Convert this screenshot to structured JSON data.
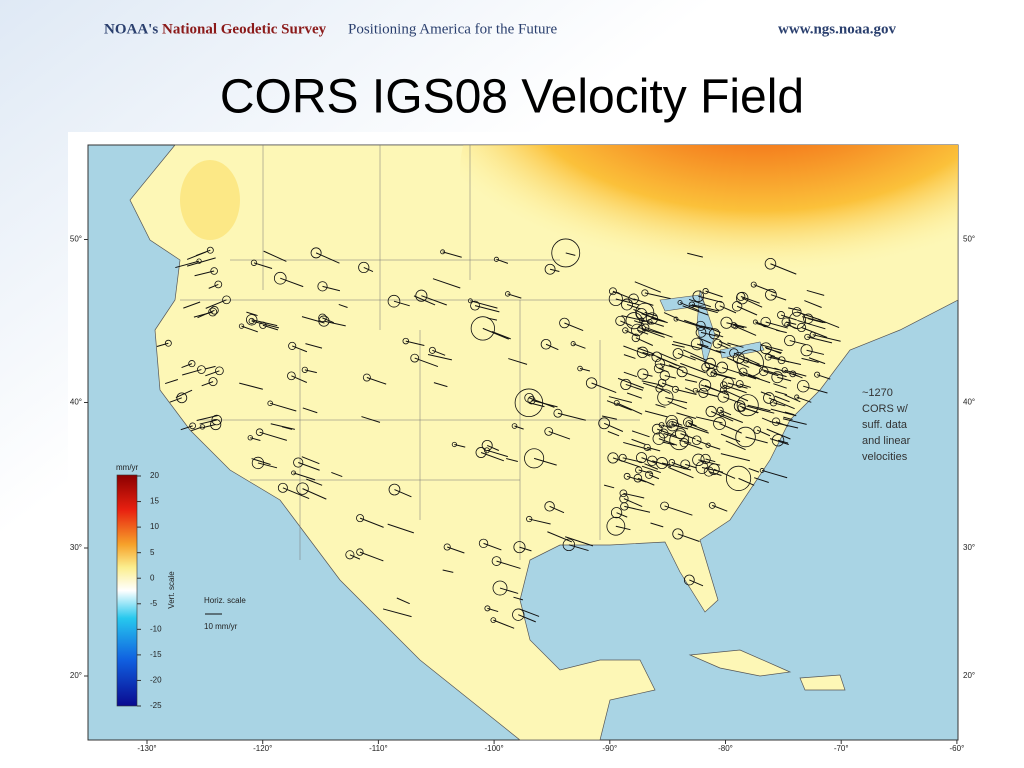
{
  "header": {
    "agency": "NOAA's",
    "survey": "National Geodetic Survey",
    "motto": "Positioning America for the Future",
    "url": "www.ngs.noaa.gov"
  },
  "title": "CORS IGS08 Velocity Field",
  "map": {
    "annotation": [
      "~1270",
      "CORS w/",
      "suff. data",
      "and linear",
      "velocities"
    ],
    "lon_ticks": [
      {
        "value": -130,
        "label": "-130°"
      },
      {
        "value": -120,
        "label": "-120°"
      },
      {
        "value": -110,
        "label": "-110°"
      },
      {
        "value": -100,
        "label": "-100°"
      },
      {
        "value": -90,
        "label": "-90°"
      },
      {
        "value": -80,
        "label": "-80°"
      },
      {
        "value": -70,
        "label": "-70°"
      },
      {
        "value": -60,
        "label": "-60°"
      }
    ],
    "lat_ticks": [
      {
        "value": 20,
        "label": "20°"
      },
      {
        "value": 30,
        "label": "30°"
      },
      {
        "value": 40,
        "label": "40°"
      },
      {
        "value": 50,
        "label": "50°"
      }
    ],
    "colorbar": {
      "unit": "mm/yr",
      "label": "Vert. scale",
      "lim": [
        -25,
        20
      ],
      "ticks": [
        20,
        15,
        10,
        5,
        0,
        -5,
        -10,
        -15,
        -20,
        -25
      ]
    },
    "horiz_scale": {
      "label": "Horiz. scale",
      "length": "10 mm/yr"
    }
  }
}
